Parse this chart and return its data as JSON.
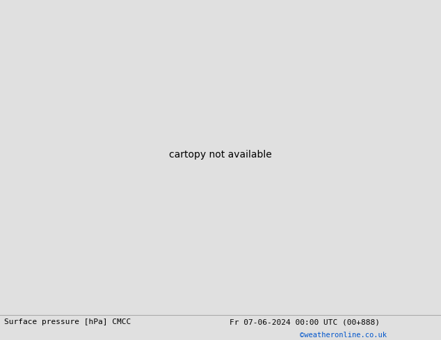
{
  "title_left": "Surface pressure [hPa] CMCC",
  "title_right": "Fr 07-06-2024 00:00 UTC (00+888)",
  "copyright": "©weatheronline.co.uk",
  "land_color": "#b5d9a0",
  "sea_color": "#c8c8c8",
  "border_color": "#888888",
  "contour_red_color": "#dd0000",
  "contour_black_color": "#000000",
  "contour_blue_color": "#0055cc",
  "text_color": "#000000",
  "footer_bg": "#e0e0e0",
  "map_bg": "#c8c8c8",
  "figsize": [
    6.34,
    4.9
  ],
  "dpi": 100,
  "extent": [
    -25,
    45,
    30,
    72
  ]
}
